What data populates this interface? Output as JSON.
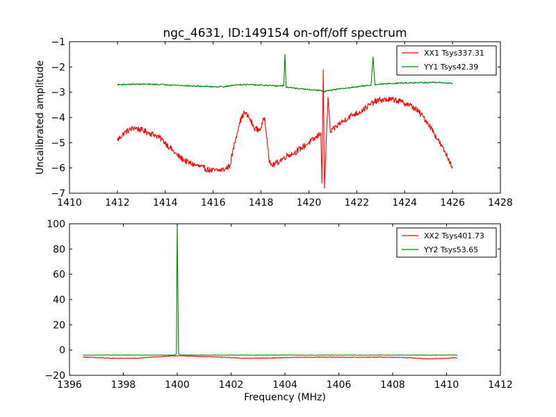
{
  "figure": {
    "background": "#ffffff"
  },
  "chart_data": [
    {
      "type": "line",
      "title": "ngc_4631, ID:149154 on-off/off spectrum",
      "xlabel": "",
      "ylabel": "Uncalibrated amplitude",
      "xlim": [
        1410,
        1428
      ],
      "ylim": [
        -7,
        -1
      ],
      "xticks": [
        1410,
        1412,
        1414,
        1416,
        1418,
        1420,
        1422,
        1424,
        1426,
        1428
      ],
      "yticks": [
        -7,
        -6,
        -5,
        -4,
        -3,
        -2,
        -1
      ],
      "grid": false,
      "legend_position": "top-right",
      "series": [
        {
          "name": "XX1 Tsys337.31",
          "color": "#ff0000",
          "noise": 0.12,
          "points": [
            [
              1412.0,
              -4.9
            ],
            [
              1412.3,
              -4.6
            ],
            [
              1412.7,
              -4.4
            ],
            [
              1413.0,
              -4.5
            ],
            [
              1413.3,
              -4.6
            ],
            [
              1413.6,
              -4.7
            ],
            [
              1413.9,
              -4.9
            ],
            [
              1414.2,
              -5.2
            ],
            [
              1414.5,
              -5.5
            ],
            [
              1414.8,
              -5.7
            ],
            [
              1415.0,
              -5.8
            ],
            [
              1415.3,
              -5.9
            ],
            [
              1415.6,
              -6.0
            ],
            [
              1415.9,
              -6.1
            ],
            [
              1416.2,
              -6.1
            ],
            [
              1416.5,
              -6.05
            ],
            [
              1416.7,
              -5.9
            ],
            [
              1416.9,
              -5.0
            ],
            [
              1417.1,
              -4.2
            ],
            [
              1417.3,
              -3.8
            ],
            [
              1417.5,
              -4.0
            ],
            [
              1417.7,
              -4.4
            ],
            [
              1417.9,
              -4.5
            ],
            [
              1418.0,
              -4.4
            ],
            [
              1418.15,
              -4.0
            ],
            [
              1418.25,
              -4.8
            ],
            [
              1418.35,
              -5.8
            ],
            [
              1418.5,
              -5.9
            ],
            [
              1418.8,
              -5.7
            ],
            [
              1419.1,
              -5.5
            ],
            [
              1419.4,
              -5.4
            ],
            [
              1419.7,
              -5.2
            ],
            [
              1420.0,
              -5.0
            ],
            [
              1420.3,
              -4.8
            ],
            [
              1420.5,
              -4.6
            ],
            [
              1420.55,
              -6.6
            ],
            [
              1420.6,
              -2.1
            ],
            [
              1420.65,
              -6.8
            ],
            [
              1420.8,
              -3.2
            ],
            [
              1420.9,
              -4.6
            ],
            [
              1421.2,
              -4.3
            ],
            [
              1421.5,
              -4.1
            ],
            [
              1421.8,
              -3.9
            ],
            [
              1422.1,
              -3.8
            ],
            [
              1422.4,
              -3.6
            ],
            [
              1422.7,
              -3.4
            ],
            [
              1423.0,
              -3.3
            ],
            [
              1423.3,
              -3.3
            ],
            [
              1423.6,
              -3.3
            ],
            [
              1423.9,
              -3.4
            ],
            [
              1424.2,
              -3.5
            ],
            [
              1424.5,
              -3.7
            ],
            [
              1424.8,
              -4.0
            ],
            [
              1425.1,
              -4.4
            ],
            [
              1425.4,
              -4.9
            ],
            [
              1425.7,
              -5.4
            ],
            [
              1426.0,
              -5.95
            ]
          ]
        },
        {
          "name": "YY1 Tsys42.39",
          "color": "#008000",
          "noise": 0.025,
          "points": [
            [
              1412.0,
              -2.7
            ],
            [
              1413.0,
              -2.68
            ],
            [
              1414.0,
              -2.7
            ],
            [
              1415.0,
              -2.75
            ],
            [
              1416.0,
              -2.78
            ],
            [
              1416.5,
              -2.78
            ],
            [
              1417.0,
              -2.7
            ],
            [
              1417.5,
              -2.7
            ],
            [
              1418.0,
              -2.72
            ],
            [
              1418.5,
              -2.75
            ],
            [
              1418.95,
              -2.75
            ],
            [
              1419.0,
              -1.5
            ],
            [
              1419.05,
              -2.8
            ],
            [
              1419.5,
              -2.85
            ],
            [
              1420.0,
              -2.9
            ],
            [
              1420.5,
              -2.93
            ],
            [
              1420.6,
              -2.98
            ],
            [
              1421.0,
              -2.9
            ],
            [
              1421.5,
              -2.85
            ],
            [
              1422.0,
              -2.78
            ],
            [
              1422.6,
              -2.72
            ],
            [
              1422.68,
              -1.6
            ],
            [
              1422.76,
              -2.7
            ],
            [
              1423.5,
              -2.65
            ],
            [
              1424.5,
              -2.62
            ],
            [
              1425.5,
              -2.62
            ],
            [
              1426.0,
              -2.65
            ]
          ]
        }
      ]
    },
    {
      "type": "line",
      "title": "",
      "xlabel": "Frequency (MHz)",
      "ylabel": "",
      "xlim": [
        1396,
        1412
      ],
      "ylim": [
        -20,
        100
      ],
      "xticks": [
        1396,
        1398,
        1400,
        1402,
        1404,
        1406,
        1408,
        1410,
        1412
      ],
      "yticks": [
        -20,
        0,
        20,
        40,
        60,
        80,
        100
      ],
      "grid": false,
      "legend_position": "top-right",
      "series": [
        {
          "name": "XX2 Tsys401.73",
          "color": "#ff0000",
          "noise": 0.25,
          "points": [
            [
              1396.5,
              -5.5
            ],
            [
              1397.5,
              -6.5
            ],
            [
              1398.5,
              -6.5
            ],
            [
              1399.5,
              -5.0
            ],
            [
              1400.0,
              -4.5
            ],
            [
              1400.5,
              -4.8
            ],
            [
              1401.5,
              -5.5
            ],
            [
              1402.5,
              -6.5
            ],
            [
              1403.5,
              -6.3
            ],
            [
              1404.5,
              -5.8
            ],
            [
              1405.5,
              -5.6
            ],
            [
              1406.5,
              -5.8
            ],
            [
              1407.5,
              -5.6
            ],
            [
              1408.5,
              -6.0
            ],
            [
              1409.3,
              -7.0
            ],
            [
              1410.0,
              -6.5
            ],
            [
              1410.4,
              -6.0
            ]
          ]
        },
        {
          "name": "YY2 Tsys53.65",
          "color": "#008000",
          "noise": 0.1,
          "points": [
            [
              1396.5,
              -4.0
            ],
            [
              1399.9,
              -4.0
            ],
            [
              1399.97,
              -3.0
            ],
            [
              1400.0,
              100
            ],
            [
              1400.05,
              -3.0
            ],
            [
              1400.12,
              -4.0
            ],
            [
              1410.4,
              -4.0
            ]
          ]
        }
      ]
    }
  ]
}
